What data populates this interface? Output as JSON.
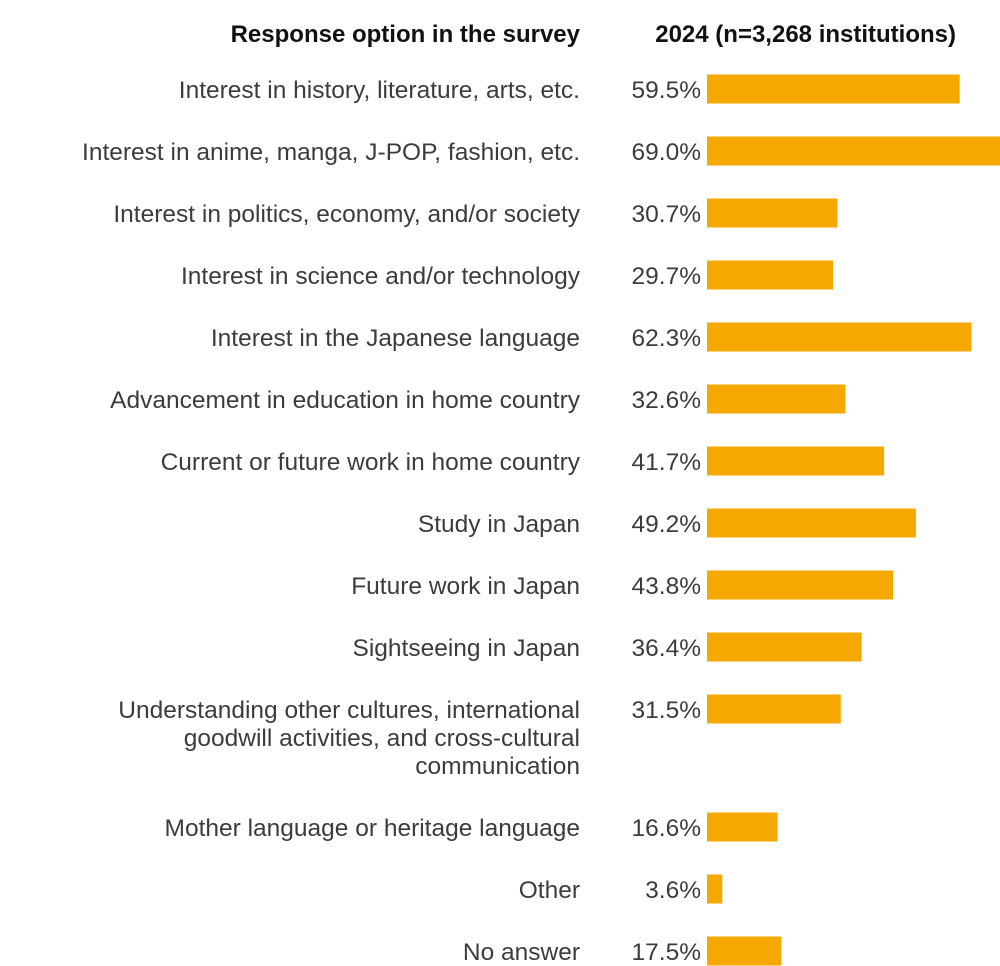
{
  "header": {
    "category_header": "Response option in the survey",
    "value_header": "2024 (n=3,268 institutions)"
  },
  "colors": {
    "bar": "#F5A800",
    "text": "#3c3c3c",
    "header": "#111111"
  },
  "chart_data": {
    "type": "bar",
    "orientation": "horizontal",
    "title": "",
    "xlabel": "",
    "ylabel": "",
    "unit": "%",
    "xlim": [
      0,
      69.0
    ],
    "grid": false,
    "legend": "none",
    "series": [
      {
        "name": "2024 (n=3,268 institutions)",
        "values": [
          59.5,
          69.0,
          30.7,
          29.7,
          62.3,
          32.6,
          41.7,
          49.2,
          43.8,
          36.4,
          31.5,
          16.6,
          3.6,
          17.5
        ]
      }
    ],
    "categories": [
      [
        "Interest in history, literature, arts, etc."
      ],
      [
        "Interest in anime, manga, J-POP, fashion, etc."
      ],
      [
        "Interest in politics, economy, and/or society"
      ],
      [
        "Interest in science and/or technology"
      ],
      [
        "Interest in the Japanese language"
      ],
      [
        "Advancement in education in home country"
      ],
      [
        "Current or future work in home country"
      ],
      [
        "Study in Japan"
      ],
      [
        "Future work in Japan"
      ],
      [
        "Sightseeing in Japan"
      ],
      [
        "Understanding other cultures, international",
        "goodwill activities, and cross-cultural",
        "communication"
      ],
      [
        "Mother language or heritage language"
      ],
      [
        "Other"
      ],
      [
        "No answer"
      ]
    ],
    "value_labels": [
      "59.5%",
      "69.0%",
      "30.7%",
      "29.7%",
      "62.3%",
      "32.6%",
      "41.7%",
      "49.2%",
      "43.8%",
      "36.4%",
      "31.5%",
      "16.6%",
      "3.6%",
      "17.5%"
    ]
  }
}
